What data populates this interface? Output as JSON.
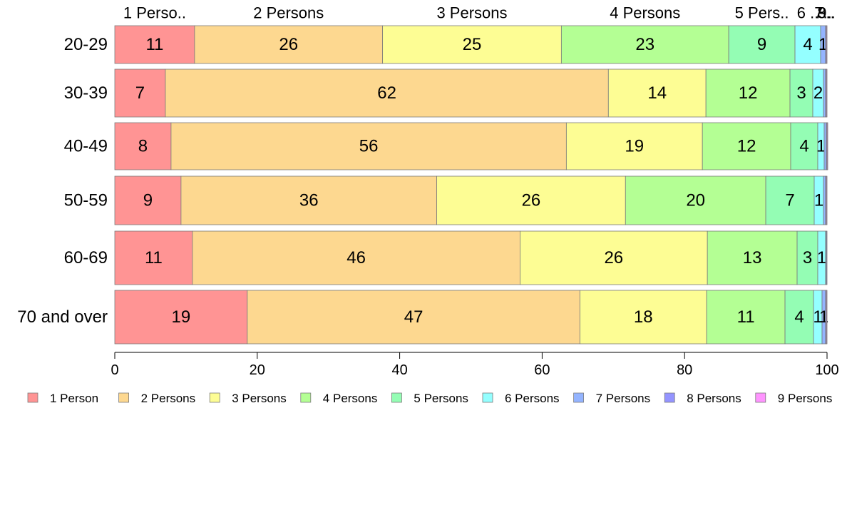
{
  "chart_data": {
    "type": "bar",
    "orientation": "horizontal",
    "stacked": true,
    "categories": [
      "20-29",
      "30-39",
      "40-49",
      "50-59",
      "60-69",
      "70 and over"
    ],
    "series": [
      {
        "name": "1 Person",
        "color": "#ff9494",
        "values": [
          11.2,
          7.1,
          7.9,
          9.3,
          10.9,
          18.6
        ]
      },
      {
        "name": "2 Persons",
        "color": "#fdd890",
        "values": [
          26.4,
          62.2,
          55.5,
          35.9,
          46.0,
          46.7
        ]
      },
      {
        "name": "3 Persons",
        "color": "#fdfd94",
        "values": [
          25.1,
          13.7,
          19.1,
          26.5,
          26.3,
          17.8
        ]
      },
      {
        "name": "4 Persons",
        "color": "#b4ff94",
        "values": [
          23.5,
          11.8,
          12.4,
          19.7,
          12.6,
          11.0
        ]
      },
      {
        "name": "5 Persons",
        "color": "#94fdb4",
        "values": [
          9.3,
          3.2,
          3.8,
          6.8,
          2.9,
          4.0
        ]
      },
      {
        "name": "6 Persons",
        "color": "#94ffff",
        "values": [
          3.6,
          1.5,
          0.9,
          1.3,
          1.1,
          1.2
        ]
      },
      {
        "name": "7 Persons",
        "color": "#94b4ff",
        "values": [
          0.7,
          0.3,
          0.3,
          0.3,
          0.1,
          0.5
        ]
      },
      {
        "name": "8 Persons",
        "color": "#9494ff",
        "values": [
          0.1,
          0.1,
          0.1,
          0.1,
          0.1,
          0.1
        ]
      },
      {
        "name": "9 Persons",
        "color": "#ff94ff",
        "values": [
          0.1,
          0.1,
          0.1,
          0.1,
          0.0,
          0.1
        ]
      }
    ],
    "value_labels": [
      [
        "11",
        "26",
        "25",
        "23",
        "9",
        "4",
        "1",
        "",
        ""
      ],
      [
        "7",
        "62",
        "14",
        "12",
        "3",
        "2",
        "",
        "",
        ""
      ],
      [
        "8",
        "56",
        "19",
        "12",
        "4",
        "1",
        "",
        "",
        ""
      ],
      [
        "9",
        "36",
        "26",
        "20",
        "7",
        "1",
        "",
        "",
        ""
      ],
      [
        "11",
        "46",
        "26",
        "13",
        "3",
        "1",
        "",
        "",
        ""
      ],
      [
        "19",
        "47",
        "18",
        "11",
        "4",
        "1",
        "1",
        "",
        ""
      ]
    ],
    "top_labels": [
      "1 Perso..",
      "2 Persons",
      "3 Persons",
      "4 Persons",
      "5 Pers..",
      "6 ..",
      "7..",
      "8..",
      "9.."
    ],
    "xlim": [
      0,
      100
    ],
    "xticks": [
      0,
      20,
      40,
      60,
      80,
      100
    ],
    "legend_position": "bottom",
    "grid": false
  }
}
